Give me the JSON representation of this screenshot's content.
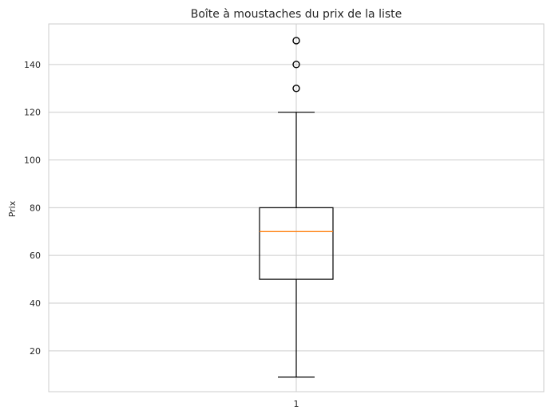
{
  "chart_data": {
    "type": "box",
    "title": "Boîte à moustaches du prix de la liste",
    "xlabel": "",
    "ylabel": "Prix",
    "categories": [
      "1"
    ],
    "ylim": [
      2.9,
      157
    ],
    "yticks": [
      20,
      40,
      60,
      80,
      100,
      120,
      140
    ],
    "grid": true,
    "boxes": [
      {
        "category": "1",
        "whisker_low": 9,
        "q1": 50,
        "median": 70,
        "q3": 80,
        "whisker_high": 120,
        "outliers": [
          130,
          140,
          150
        ]
      }
    ],
    "colors": {
      "median": "#ff7f0e",
      "box": "#000000",
      "grid": "#cccccc",
      "spine": "#cccccc"
    }
  }
}
